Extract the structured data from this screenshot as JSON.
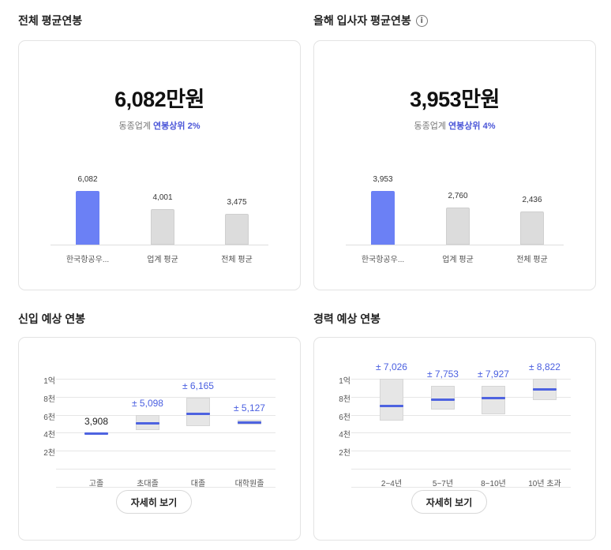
{
  "total_salary": {
    "title": "전체 평균연봉",
    "amount": "6,082만원",
    "rank_prefix": "동종업계 ",
    "rank_highlight": "연봉상위 2%",
    "bars": [
      {
        "label": "한국항공우...",
        "value": 6082,
        "value_text": "6,082",
        "style": "primary"
      },
      {
        "label": "업계 평균",
        "value": 4001,
        "value_text": "4,001",
        "style": "gray"
      },
      {
        "label": "전체 평균",
        "value": 3475,
        "value_text": "3,475",
        "style": "gray"
      }
    ]
  },
  "new_hire_salary": {
    "title": "올해 입사자 평균연봉",
    "info_icon": "info-icon",
    "amount": "3,953만원",
    "rank_prefix": "동종업계 ",
    "rank_highlight": "연봉상위 4%",
    "bars": [
      {
        "label": "한국항공우...",
        "value": 3953,
        "value_text": "3,953",
        "style": "primary"
      },
      {
        "label": "업계 평균",
        "value": 2760,
        "value_text": "2,760",
        "style": "gray"
      },
      {
        "label": "전체 평균",
        "value": 2436,
        "value_text": "2,436",
        "style": "gray"
      }
    ]
  },
  "entry_expected": {
    "title": "신입 예상 연봉",
    "y_ticks": [
      "1억",
      "8천",
      "6천",
      "4천",
      "2천"
    ],
    "items": [
      {
        "label": "고졸",
        "value_text": "3,908",
        "mid": 3908,
        "low": 3908,
        "high": 3908,
        "label_style": "dark"
      },
      {
        "label": "초대졸",
        "value_text": "± 5,098",
        "mid": 5098,
        "low": 4300,
        "high": 6000,
        "label_style": "blue"
      },
      {
        "label": "대졸",
        "value_text": "± 6,165",
        "mid": 6165,
        "low": 4700,
        "high": 7900,
        "label_style": "blue"
      },
      {
        "label": "대학원졸",
        "value_text": "± 5,127",
        "mid": 5127,
        "low": 4900,
        "high": 5400,
        "label_style": "blue"
      }
    ],
    "button": "자세히 보기"
  },
  "career_expected": {
    "title": "경력 예상 연봉",
    "y_ticks": [
      "1억",
      "8천",
      "6천",
      "4천",
      "2천"
    ],
    "items": [
      {
        "label": "2~4년",
        "value_text": "± 7,026",
        "mid": 7026,
        "low": 5300,
        "high": 10000,
        "label_style": "blue"
      },
      {
        "label": "5~7년",
        "value_text": "± 7,753",
        "mid": 7753,
        "low": 6600,
        "high": 9200,
        "label_style": "blue"
      },
      {
        "label": "8~10년",
        "value_text": "± 7,927",
        "mid": 7927,
        "low": 6000,
        "high": 9200,
        "label_style": "blue"
      },
      {
        "label": "10년 초과",
        "value_text": "± 8,822",
        "mid": 8822,
        "low": 7600,
        "high": 10000,
        "label_style": "blue"
      }
    ],
    "button": "자세히 보기"
  }
}
